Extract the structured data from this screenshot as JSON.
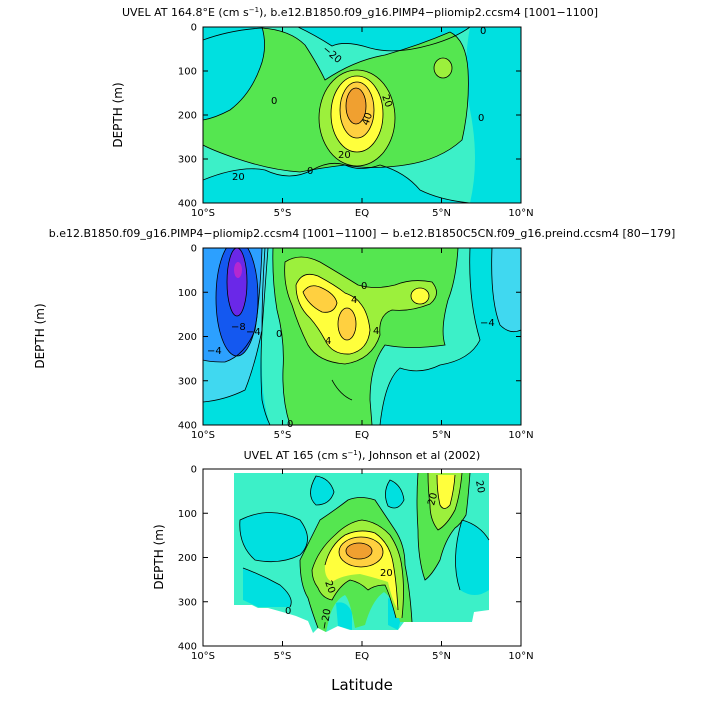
{
  "figure": {
    "xlabel": "Latitude"
  },
  "colors": {
    "cyan": "#00e0e0",
    "teal": "#3cf0c8",
    "green": "#55e650",
    "lime": "#9cf03c",
    "yellow": "#ffff3c",
    "gold": "#ffd040",
    "orange": "#f0a030",
    "lightblue": "#40d8f0",
    "blue": "#2ca0ff",
    "deepblue": "#1458f0",
    "violet": "#6a28e8",
    "magenta": "#b428d0"
  },
  "chart_data": [
    {
      "id": "panel-1",
      "type": "contour",
      "title_prefix": "UVEL AT 164.8°E (cm s",
      "title_sup": "−1",
      "title_suffix": "), b.e12.B1850.f09_g16.PIMP4−pliomip2.ccsm4 [1001−1100]",
      "ylabel": "DEPTH (m)",
      "xlim": [
        -10,
        10
      ],
      "ylim": [
        0,
        400
      ],
      "yticks": [
        0,
        100,
        200,
        300,
        400
      ],
      "xticks": [
        "10°S",
        "5°S",
        "EQ",
        "5°N",
        "10°N"
      ],
      "contour_labels": [
        "−20",
        "0",
        "0",
        "20",
        "20",
        "40",
        "20",
        "0",
        "0"
      ],
      "max_value": 50
    },
    {
      "id": "panel-2",
      "type": "contour",
      "title": "b.e12.B1850.f09_g16.PIMP4−pliomip2.ccsm4 [1001−1100] − b.e12.B1850C5CN.f09_g16.preind.ccsm4 [80−179]",
      "ylabel": "DEPTH (m)",
      "xlim": [
        -10,
        10
      ],
      "ylim": [
        0,
        400
      ],
      "yticks": [
        0,
        100,
        200,
        300,
        400
      ],
      "xticks": [
        "10°S",
        "5°S",
        "EQ",
        "5°N",
        "10°N"
      ],
      "contour_labels": [
        "−8",
        "−4",
        "−4",
        "0",
        "4",
        "4",
        "4",
        "0",
        "−4",
        "0"
      ],
      "min_value": -14,
      "max_value": 8
    },
    {
      "id": "panel-3",
      "type": "contour",
      "title_prefix": "UVEL AT 165 (cm s",
      "title_sup": "−1",
      "title_suffix": "), Johnson et al (2002)",
      "ylabel": "DEPTH (m)",
      "xlim": [
        -10,
        10
      ],
      "ylim": [
        0,
        400
      ],
      "yticks": [
        0,
        100,
        200,
        300,
        400
      ],
      "xticks": [
        "10°S",
        "5°S",
        "EQ",
        "5°N",
        "10°N"
      ],
      "data_extent_lat": [
        -8,
        8
      ],
      "contour_labels": [
        "20",
        "20",
        "20",
        "20",
        "0",
        "−20"
      ],
      "max_value": 50
    }
  ]
}
